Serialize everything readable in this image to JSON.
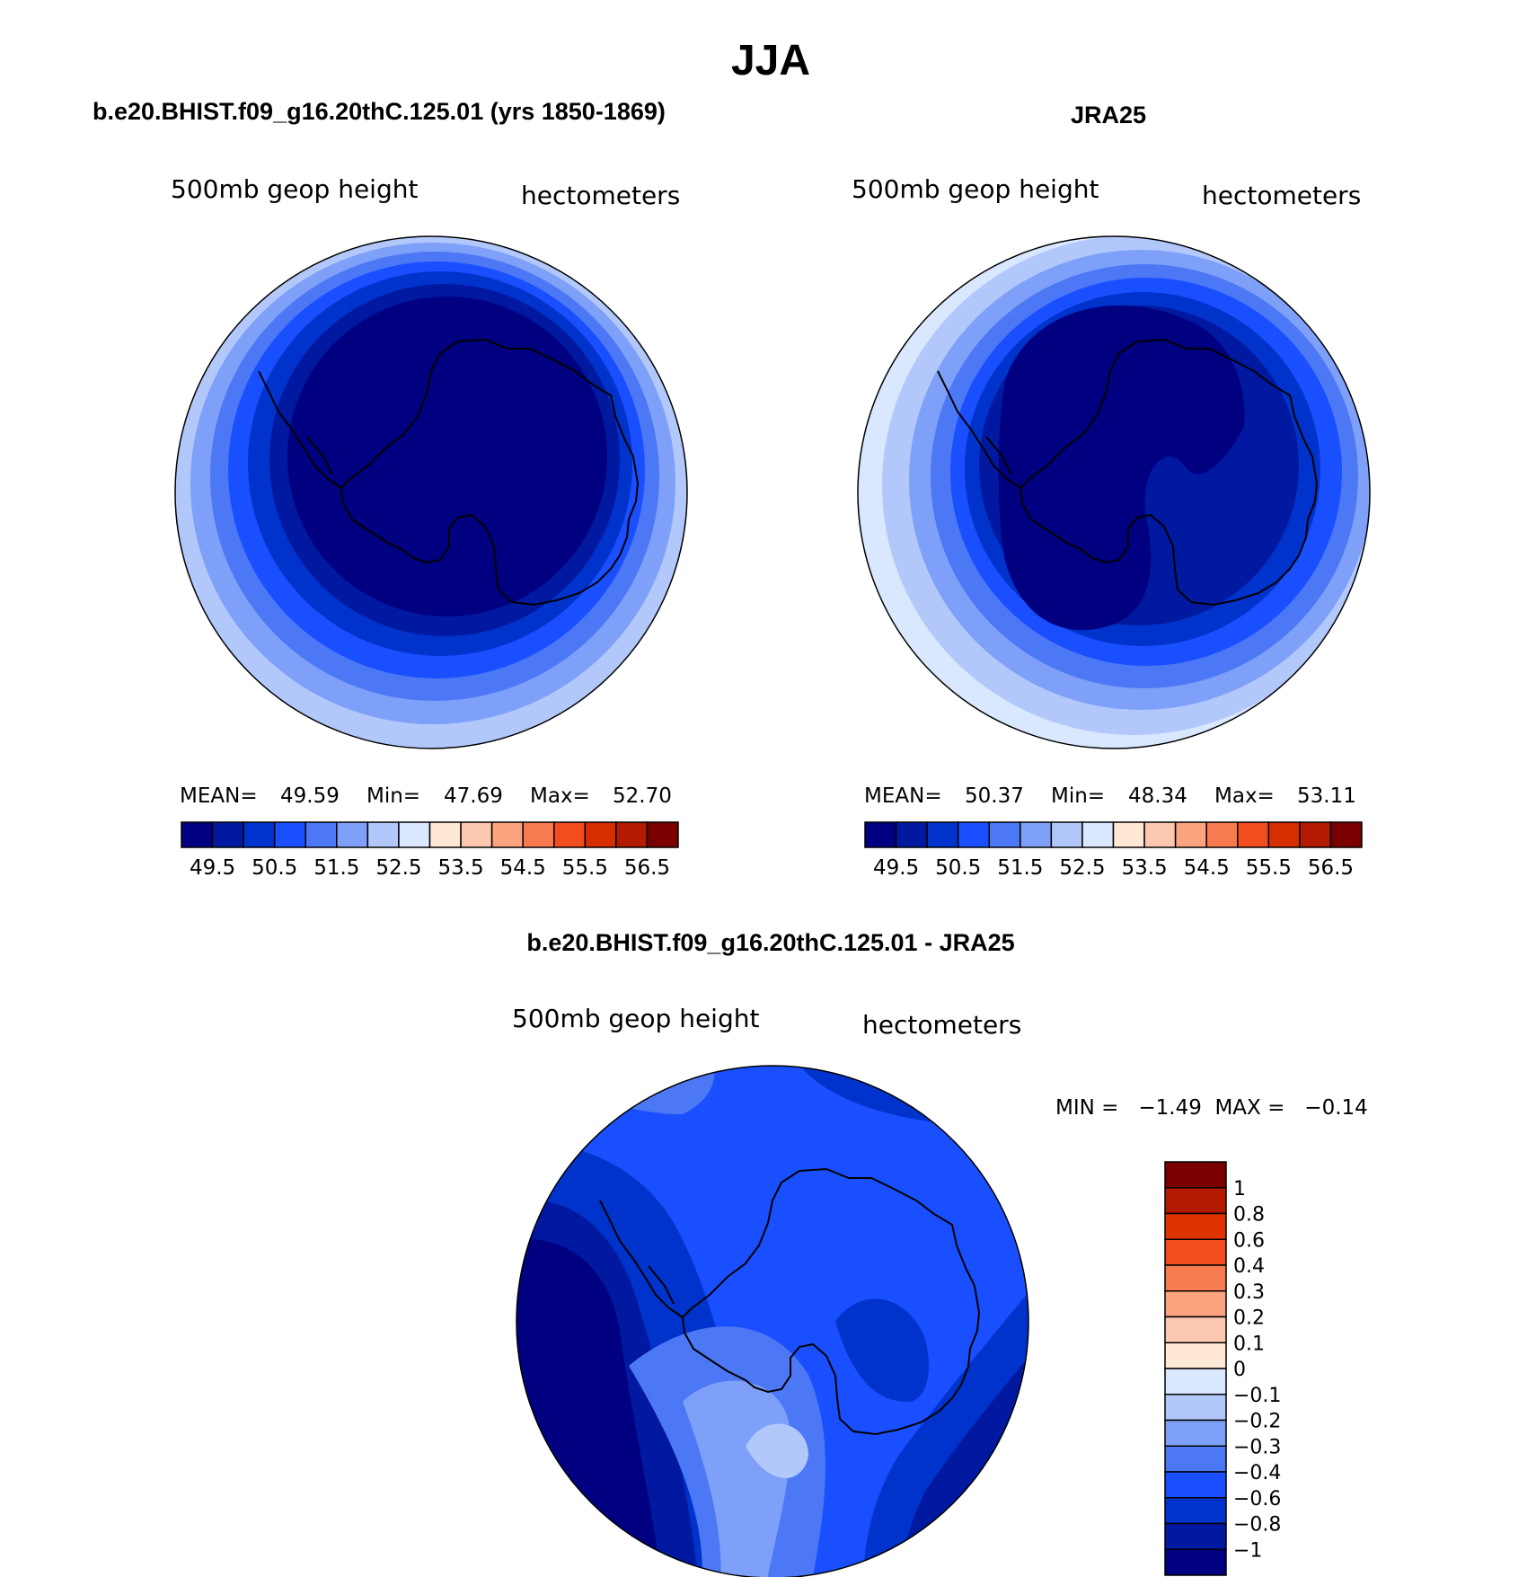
{
  "figure": {
    "title": "JJA"
  },
  "colors": {
    "mean_scale": [
      "#000080",
      "#0019a0",
      "#0033cc",
      "#1a4fff",
      "#4c78f5",
      "#7fa0f8",
      "#b3c8fa",
      "#d9e7ff",
      "#ffe8d6",
      "#fcc8b0",
      "#fca37f",
      "#f87b4f",
      "#f24d1f",
      "#d62e00",
      "#b31a00",
      "#7a0000"
    ],
    "diff_scale": [
      "#000080",
      "#0019a0",
      "#0033cc",
      "#1a4fff",
      "#4c78f5",
      "#7fa0f8",
      "#b3c8fa",
      "#d9e7ff",
      "#ffe8d6",
      "#fcc8b0",
      "#fca37f",
      "#f87b4f",
      "#f24d1f",
      "#e03400",
      "#b31a00",
      "#7a0000"
    ]
  },
  "panels": {
    "model": {
      "title": "b.e20.BHIST.f09_g16.20thC.125.01 (yrs 1850-1869)",
      "variable": "500mb geop height",
      "units": "hectometers",
      "stats": {
        "mean_label": "MEAN=",
        "mean": "49.59",
        "min_label": "Min=",
        "min": "47.69",
        "max_label": "Max=",
        "max": "52.70"
      },
      "colorbar_labels": [
        "49.5",
        "50.5",
        "51.5",
        "52.5",
        "53.5",
        "54.5",
        "55.5",
        "56.5"
      ]
    },
    "obs": {
      "title": "JRA25",
      "variable": "500mb geop height",
      "units": "hectometers",
      "stats": {
        "mean_label": "MEAN=",
        "mean": "50.37",
        "min_label": "Min=",
        "min": "48.34",
        "max_label": "Max=",
        "max": "53.11"
      },
      "colorbar_labels": [
        "49.5",
        "50.5",
        "51.5",
        "52.5",
        "53.5",
        "54.5",
        "55.5",
        "56.5"
      ]
    },
    "diff": {
      "title": "b.e20.BHIST.f09_g16.20thC.125.01 - JRA25",
      "variable": "500mb geop height",
      "units": "hectometers",
      "minmax": "MIN =   −1.49  MAX =   −0.14",
      "colorbar_labels": [
        "1",
        "0.8",
        "0.6",
        "0.4",
        "0.3",
        "0.2",
        "0.1",
        "0",
        "−0.1",
        "−0.2",
        "−0.3",
        "−0.4",
        "−0.6",
        "−0.8",
        "−1"
      ]
    }
  }
}
